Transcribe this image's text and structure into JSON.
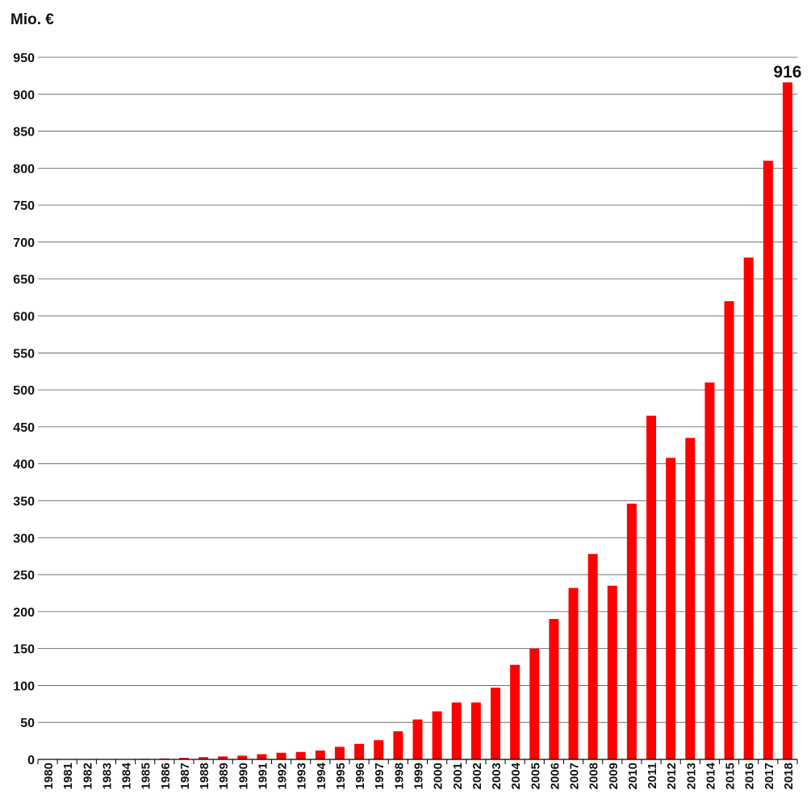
{
  "chart_data": {
    "type": "bar",
    "title": "",
    "ylabel": "Mio. €",
    "xlabel": "",
    "ylim": [
      0,
      950
    ],
    "yticks": [
      0,
      50,
      100,
      150,
      200,
      250,
      300,
      350,
      400,
      450,
      500,
      550,
      600,
      650,
      700,
      750,
      800,
      850,
      900,
      950
    ],
    "grid": true,
    "bar_color": "#ff0000",
    "categories": [
      "1980",
      "1981",
      "1982",
      "1983",
      "1984",
      "1985",
      "1986",
      "1987",
      "1988",
      "1989",
      "1990",
      "1991",
      "1992",
      "1993",
      "1994",
      "1995",
      "1996",
      "1997",
      "1998",
      "1999",
      "2000",
      "2001",
      "2002",
      "2003",
      "2004",
      "2005",
      "2006",
      "2007",
      "2008",
      "2009",
      "2010",
      "2011",
      "2012",
      "2013",
      "2014",
      "2015",
      "2016",
      "2017",
      "2018"
    ],
    "values": [
      0.1,
      0.2,
      0.3,
      0.4,
      0.5,
      0.8,
      1.2,
      2,
      3,
      4,
      5,
      7,
      9,
      10,
      12,
      17,
      21,
      26,
      38,
      54,
      65,
      77,
      77,
      97,
      128,
      150,
      190,
      232,
      278,
      235,
      346,
      465,
      408,
      435,
      510,
      620,
      679,
      810,
      916
    ],
    "annotations": [
      {
        "category": "2018",
        "text": "916"
      }
    ]
  }
}
